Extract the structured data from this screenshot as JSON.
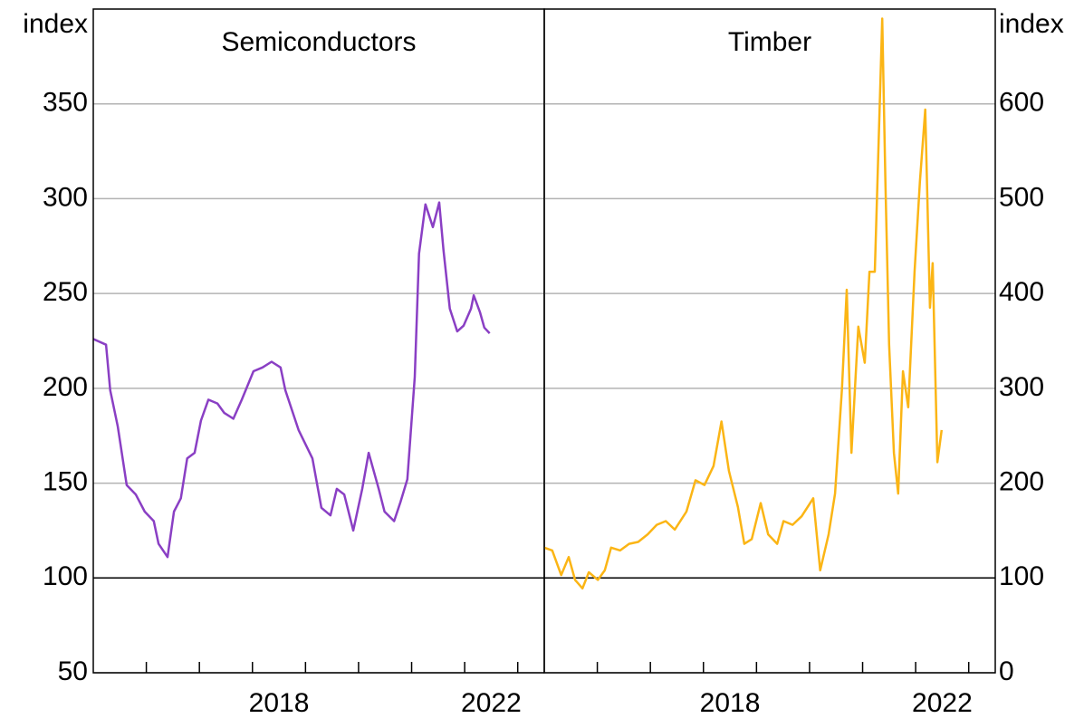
{
  "chart_data": [
    {
      "type": "line",
      "title": "Semiconductors",
      "ylabel": "index",
      "axis_side": "left",
      "xlim": [
        2015,
        2023.5
      ],
      "xticks": [
        2016,
        2017,
        2018,
        2019,
        2020,
        2021,
        2022,
        2023
      ],
      "xtick_labels": [
        {
          "value": 2018.5,
          "label": "2018"
        },
        {
          "value": 2022.5,
          "label": "2022"
        }
      ],
      "ylim": [
        50,
        400
      ],
      "yticks": [
        50,
        100,
        150,
        200,
        250,
        300,
        350
      ],
      "grid": true,
      "reference_line": 100,
      "series": [
        {
          "name": "Semiconductors",
          "color": "#8a3fc4",
          "x": [
            2015.0,
            2015.24,
            2015.32,
            2015.46,
            2015.63,
            2015.8,
            2015.97,
            2016.14,
            2016.23,
            2016.4,
            2016.52,
            2016.65,
            2016.77,
            2016.91,
            2017.03,
            2017.17,
            2017.34,
            2017.47,
            2017.64,
            2017.8,
            2018.02,
            2018.19,
            2018.36,
            2018.53,
            2018.62,
            2018.87,
            2019.13,
            2019.3,
            2019.47,
            2019.59,
            2019.73,
            2019.9,
            2020.07,
            2020.19,
            2020.38,
            2020.49,
            2020.67,
            2020.79,
            2020.92,
            2021.06,
            2021.14,
            2021.26,
            2021.4,
            2021.52,
            2021.6,
            2021.72,
            2021.86,
            2021.98,
            2022.12,
            2022.17,
            2022.29,
            2022.37,
            2022.47
          ],
          "values": [
            226,
            223,
            199,
            180,
            149,
            144,
            135,
            130,
            118,
            111,
            135,
            142,
            163,
            166,
            183,
            194,
            192,
            187,
            184,
            194,
            209,
            211,
            214,
            211,
            199,
            178,
            163,
            137,
            133,
            147,
            144,
            125,
            147,
            166,
            147,
            135,
            130,
            140,
            152,
            206,
            271,
            297,
            285,
            298,
            273,
            242,
            230,
            233,
            242,
            249,
            240,
            232,
            229
          ]
        }
      ]
    },
    {
      "type": "line",
      "title": "Timber",
      "ylabel": "index",
      "axis_side": "right",
      "xlim": [
        2015,
        2023.5
      ],
      "xticks": [
        2016,
        2017,
        2018,
        2019,
        2020,
        2021,
        2022,
        2023
      ],
      "xtick_labels": [
        {
          "value": 2018.5,
          "label": "2018"
        },
        {
          "value": 2022.5,
          "label": "2022"
        }
      ],
      "ylim": [
        0,
        700
      ],
      "yticks": [
        0,
        100,
        200,
        300,
        400,
        500,
        600
      ],
      "grid": true,
      "reference_line": 100,
      "series": [
        {
          "name": "Timber",
          "color": "#fbb515",
          "x": [
            2015.0,
            2015.15,
            2015.32,
            2015.46,
            2015.58,
            2015.72,
            2015.84,
            2016.01,
            2016.14,
            2016.26,
            2016.43,
            2016.6,
            2016.77,
            2016.95,
            2017.12,
            2017.29,
            2017.46,
            2017.68,
            2017.85,
            2018.02,
            2018.19,
            2018.34,
            2018.48,
            2018.65,
            2018.77,
            2018.91,
            2019.08,
            2019.22,
            2019.39,
            2019.51,
            2019.68,
            2019.85,
            2020.07,
            2020.2,
            2020.36,
            2020.48,
            2020.61,
            2020.7,
            2020.79,
            2020.92,
            2021.04,
            2021.13,
            2021.23,
            2021.33,
            2021.37,
            2021.43,
            2021.5,
            2021.59,
            2021.67,
            2021.76,
            2021.86,
            2021.98,
            2022.08,
            2022.18,
            2022.27,
            2022.32,
            2022.41,
            2022.49
          ],
          "values": [
            132,
            129,
            103,
            122,
            98,
            89,
            106,
            98,
            108,
            132,
            129,
            136,
            138,
            146,
            156,
            160,
            151,
            170,
            203,
            198,
            218,
            265,
            213,
            175,
            136,
            141,
            179,
            146,
            136,
            160,
            156,
            165,
            184,
            108,
            146,
            189,
            299,
            404,
            232,
            365,
            327,
            423,
            423,
            614,
            690,
            518,
            346,
            232,
            189,
            318,
            280,
            423,
            518,
            594,
            385,
            432,
            222,
            256
          ]
        }
      ]
    }
  ]
}
